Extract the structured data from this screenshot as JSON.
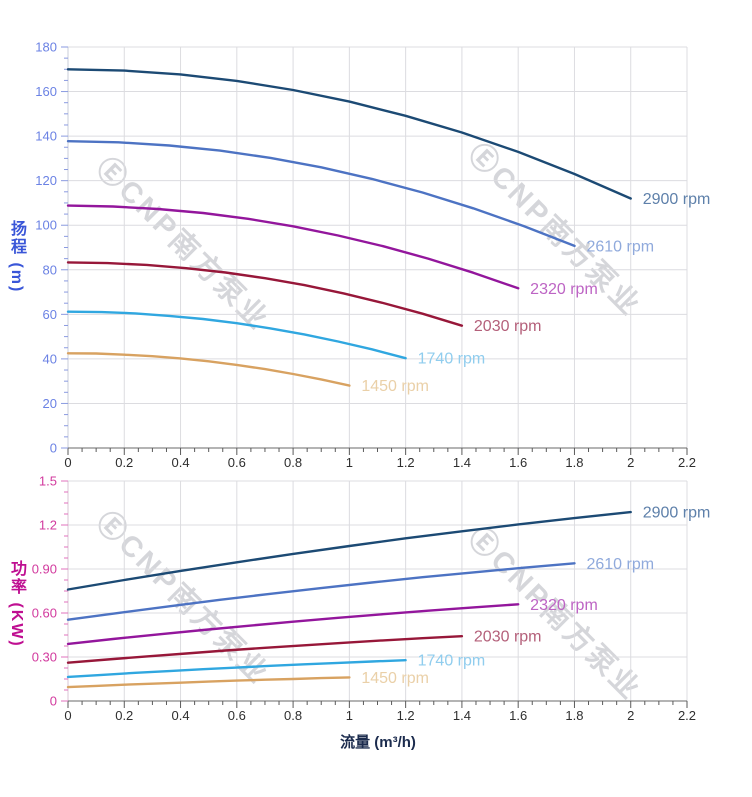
{
  "page": {
    "background": "#ffffff"
  },
  "watermark": {
    "text": "ⒺCNP南方泵业"
  },
  "chart_data": [
    {
      "type": "line",
      "title": "",
      "ylabel": "扬程 (m)",
      "xlabel": "",
      "xlim": [
        0,
        2.2
      ],
      "ylim": [
        0,
        180
      ],
      "x_major": 0.2,
      "x_minor": 0.05,
      "y_major": 20,
      "y_minor": 5,
      "grid": true,
      "legend_position": "curve-end-labels",
      "x_tick_labels": [
        "0",
        "0.2",
        "0.4",
        "0.6",
        "0.8",
        "1",
        "1.2",
        "1.4",
        "1.6",
        "1.8",
        "2",
        "2.2"
      ],
      "y_tick_labels": [
        "0",
        "20",
        "40",
        "60",
        "80",
        "100",
        "120",
        "140",
        "160",
        "180"
      ],
      "axis_colors": {
        "y_label": "#6b82e4",
        "y_tick": "#8a9ae0",
        "y_axis_line": "#c9cdda",
        "x_label": "#2f2f2f",
        "x_tick": "#5a5a5a",
        "x_axis_line": "#6a6a6a",
        "grid": "#dcdce0"
      },
      "series": [
        {
          "name": "2900 rpm",
          "color": "#1c4a74",
          "label_color": "#5e80aa",
          "x": [
            0,
            0.2,
            0.4,
            0.6,
            0.8,
            1,
            1.2,
            1.4,
            1.6,
            1.8,
            2
          ],
          "y": [
            170,
            169.4,
            167.7,
            164.8,
            160.7,
            155.5,
            149.1,
            141.6,
            132.9,
            123,
            112
          ]
        },
        {
          "name": "2610 rpm",
          "color": "#4d73c3",
          "label_color": "#90aadc",
          "x": [
            0,
            0.18,
            0.36,
            0.54,
            0.72,
            0.9,
            1.08,
            1.26,
            1.44,
            1.62,
            1.8
          ],
          "y": [
            137.7,
            137.2,
            135.8,
            133.5,
            130.2,
            126,
            120.8,
            114.7,
            107.6,
            99.6,
            90.7
          ]
        },
        {
          "name": "2320 rpm",
          "color": "#93169c",
          "label_color": "#bd64c4",
          "x": [
            0,
            0.16,
            0.32,
            0.48,
            0.64,
            0.8,
            0.96,
            1.12,
            1.28,
            1.44,
            1.6
          ],
          "y": [
            108.8,
            108.4,
            107.3,
            105.5,
            102.9,
            99.5,
            95.4,
            90.6,
            85,
            78.7,
            71.7
          ]
        },
        {
          "name": "2030 rpm",
          "color": "#971739",
          "label_color": "#b4607a",
          "x": [
            0,
            0.14,
            0.28,
            0.42,
            0.56,
            0.7,
            0.84,
            0.98,
            1.12,
            1.26,
            1.4
          ],
          "y": [
            83.3,
            83,
            82.2,
            80.7,
            78.8,
            76.2,
            73.1,
            69.4,
            65.1,
            60.3,
            54.9
          ]
        },
        {
          "name": "1740 rpm",
          "color": "#30a7e0",
          "label_color": "#90cdee",
          "x": [
            0,
            0.12,
            0.24,
            0.36,
            0.48,
            0.6,
            0.72,
            0.84,
            0.96,
            1.08,
            1.2
          ],
          "y": [
            61.2,
            61,
            60.4,
            59.3,
            57.9,
            56,
            53.7,
            51,
            47.8,
            44.3,
            40.3
          ]
        },
        {
          "name": "1450 rpm",
          "color": "#d8a261",
          "label_color": "#ead0a8",
          "x": [
            0,
            0.1,
            0.2,
            0.3,
            0.4,
            0.5,
            0.6,
            0.7,
            0.8,
            0.9,
            1
          ],
          "y": [
            42.5,
            42.4,
            41.9,
            41.2,
            40.2,
            38.9,
            37.3,
            35.4,
            33.2,
            30.8,
            28
          ]
        }
      ]
    },
    {
      "type": "line",
      "title": "",
      "ylabel": "功率 (KW)",
      "xlabel": "流量 (m³/h)",
      "xlim": [
        0,
        2.2
      ],
      "ylim": [
        0,
        1.5
      ],
      "x_major": 0.2,
      "x_minor": 0.05,
      "y_major": 0.3,
      "y_minor": 0.075,
      "grid": true,
      "legend_position": "curve-end-labels",
      "x_tick_labels": [
        "0",
        "0.2",
        "0.4",
        "0.6",
        "0.8",
        "1",
        "1.2",
        "1.4",
        "1.6",
        "1.8",
        "2",
        "2.2"
      ],
      "y_tick_labels": [
        "0",
        "0.30",
        "0.60",
        "0.90",
        "1.2",
        "1.5"
      ],
      "axis_colors": {
        "y_label": "#d23a9e",
        "y_tick": "#e070bc",
        "y_axis_line": "#d8c6d4",
        "x_label": "#2f2f2f",
        "x_tick": "#5a5a5a",
        "x_axis_line": "#6a6a6a",
        "grid": "#dcdce0"
      },
      "series": [
        {
          "name": "2900 rpm",
          "color": "#1c4a74",
          "label_color": "#5e80aa",
          "x": [
            0,
            0.2,
            0.4,
            0.6,
            0.8,
            1,
            1.2,
            1.4,
            1.6,
            1.8,
            2
          ],
          "y": [
            0.76,
            0.825,
            0.887,
            0.946,
            1.003,
            1.057,
            1.109,
            1.157,
            1.204,
            1.247,
            1.288
          ]
        },
        {
          "name": "2610 rpm",
          "color": "#4d73c3",
          "label_color": "#90aadc",
          "x": [
            0,
            0.18,
            0.36,
            0.54,
            0.72,
            0.9,
            1.08,
            1.26,
            1.44,
            1.62,
            1.8
          ],
          "y": [
            0.554,
            0.601,
            0.646,
            0.69,
            0.731,
            0.77,
            0.808,
            0.844,
            0.877,
            0.909,
            0.939
          ]
        },
        {
          "name": "2320 rpm",
          "color": "#93169c",
          "label_color": "#bd64c4",
          "x": [
            0,
            0.16,
            0.32,
            0.48,
            0.64,
            0.8,
            0.96,
            1.12,
            1.28,
            1.44,
            1.6
          ],
          "y": [
            0.389,
            0.423,
            0.454,
            0.484,
            0.513,
            0.541,
            0.567,
            0.592,
            0.616,
            0.638,
            0.659
          ]
        },
        {
          "name": "2030 rpm",
          "color": "#971739",
          "label_color": "#b4607a",
          "x": [
            0,
            0.14,
            0.28,
            0.42,
            0.56,
            0.7,
            0.84,
            0.98,
            1.12,
            1.26,
            1.4
          ],
          "y": [
            0.261,
            0.283,
            0.304,
            0.324,
            0.344,
            0.363,
            0.38,
            0.397,
            0.413,
            0.428,
            0.442
          ]
        },
        {
          "name": "1740 rpm",
          "color": "#30a7e0",
          "label_color": "#90cdee",
          "x": [
            0,
            0.12,
            0.24,
            0.36,
            0.48,
            0.6,
            0.72,
            0.84,
            0.96,
            1.08,
            1.2
          ],
          "y": [
            0.164,
            0.178,
            0.192,
            0.204,
            0.217,
            0.228,
            0.24,
            0.25,
            0.26,
            0.269,
            0.278
          ]
        },
        {
          "name": "1450 rpm",
          "color": "#d8a261",
          "label_color": "#ead0a8",
          "x": [
            0,
            0.1,
            0.2,
            0.3,
            0.4,
            0.5,
            0.6,
            0.7,
            0.8,
            0.9,
            1
          ],
          "y": [
            0.095,
            0.103,
            0.111,
            0.118,
            0.125,
            0.132,
            0.139,
            0.145,
            0.15,
            0.156,
            0.161
          ]
        }
      ]
    }
  ]
}
